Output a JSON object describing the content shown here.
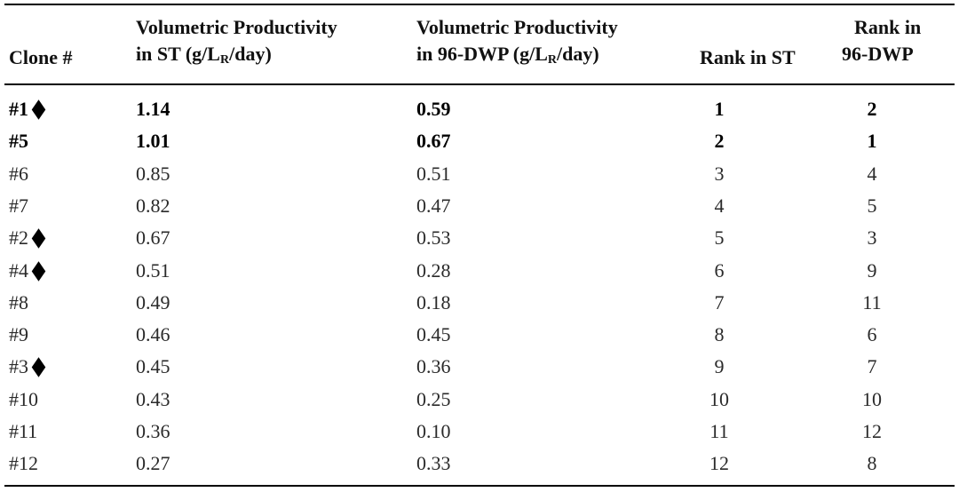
{
  "headers": {
    "clone": "Clone #",
    "vp_st_line1": "Volumetric Productivity",
    "vp_st_line2_pre": "in ST (g/L",
    "vp_st_sub": "R",
    "vp_st_line2_post": "/day)",
    "vp_dwp_line1": "Volumetric Productivity",
    "vp_dwp_line2_pre": "in 96-DWP (g/L",
    "vp_dwp_sub": "R",
    "vp_dwp_line2_post": "/day)",
    "rank_st": "Rank in ST",
    "rank_dwp_line1": "Rank in",
    "rank_dwp_line2": "96-DWP"
  },
  "rows": [
    {
      "clone": "#1",
      "diamond": true,
      "bold": true,
      "vp_st": "1.14",
      "vp_dwp": "0.59",
      "rank_st": "1",
      "rank_dwp": "2"
    },
    {
      "clone": "#5",
      "diamond": false,
      "bold": true,
      "vp_st": "1.01",
      "vp_dwp": "0.67",
      "rank_st": "2",
      "rank_dwp": "1"
    },
    {
      "clone": "#6",
      "diamond": false,
      "bold": false,
      "vp_st": "0.85",
      "vp_dwp": "0.51",
      "rank_st": "3",
      "rank_dwp": "4"
    },
    {
      "clone": "#7",
      "diamond": false,
      "bold": false,
      "vp_st": "0.82",
      "vp_dwp": "0.47",
      "rank_st": "4",
      "rank_dwp": "5"
    },
    {
      "clone": "#2",
      "diamond": true,
      "bold": false,
      "vp_st": "0.67",
      "vp_dwp": "0.53",
      "rank_st": "5",
      "rank_dwp": "3"
    },
    {
      "clone": "#4",
      "diamond": true,
      "bold": false,
      "vp_st": "0.51",
      "vp_dwp": "0.28",
      "rank_st": "6",
      "rank_dwp": "9"
    },
    {
      "clone": "#8",
      "diamond": false,
      "bold": false,
      "vp_st": "0.49",
      "vp_dwp": "0.18",
      "rank_st": "7",
      "rank_dwp": "11"
    },
    {
      "clone": "#9",
      "diamond": false,
      "bold": false,
      "vp_st": "0.46",
      "vp_dwp": "0.45",
      "rank_st": "8",
      "rank_dwp": "6"
    },
    {
      "clone": "#3",
      "diamond": true,
      "bold": false,
      "vp_st": "0.45",
      "vp_dwp": "0.36",
      "rank_st": "9",
      "rank_dwp": "7"
    },
    {
      "clone": "#10",
      "diamond": false,
      "bold": false,
      "vp_st": "0.43",
      "vp_dwp": "0.25",
      "rank_st": "10",
      "rank_dwp": "10"
    },
    {
      "clone": "#11",
      "diamond": false,
      "bold": false,
      "vp_st": "0.36",
      "vp_dwp": "0.10",
      "rank_st": "11",
      "rank_dwp": "12"
    },
    {
      "clone": "#12",
      "diamond": false,
      "bold": false,
      "vp_st": "0.27",
      "vp_dwp": "0.33",
      "rank_st": "12",
      "rank_dwp": "8"
    }
  ]
}
